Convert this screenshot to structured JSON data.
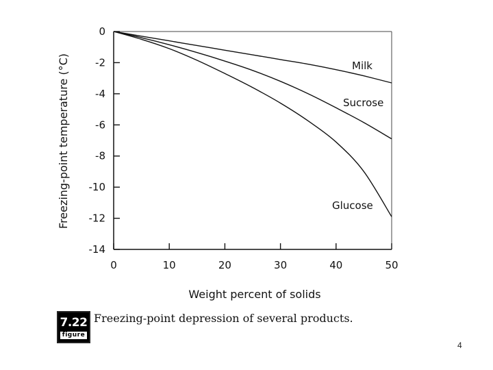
{
  "chart_data": {
    "type": "line",
    "xlabel": "Weight percent of solids",
    "ylabel": "Freezing-point temperature (°C)",
    "xlim": [
      0,
      50
    ],
    "ylim": [
      -14,
      0
    ],
    "xticks": [
      0,
      10,
      20,
      30,
      40,
      50
    ],
    "yticks": [
      0,
      -2,
      -4,
      -6,
      -8,
      -10,
      -12,
      -14
    ],
    "grid": false,
    "series": [
      {
        "name": "Milk",
        "x": [
          0,
          5,
          10,
          15,
          20,
          25,
          30,
          35,
          40,
          45,
          50
        ],
        "y": [
          0,
          -0.3,
          -0.6,
          -0.9,
          -1.2,
          -1.5,
          -1.8,
          -2.1,
          -2.45,
          -2.85,
          -3.3
        ]
      },
      {
        "name": "Sucrose",
        "x": [
          0,
          5,
          10,
          15,
          20,
          25,
          30,
          35,
          40,
          45,
          50
        ],
        "y": [
          0,
          -0.4,
          -0.85,
          -1.35,
          -1.9,
          -2.5,
          -3.2,
          -4.0,
          -4.9,
          -5.85,
          -6.9
        ]
      },
      {
        "name": "Glucose",
        "x": [
          0,
          5,
          10,
          15,
          20,
          25,
          30,
          35,
          40,
          45,
          50
        ],
        "y": [
          0,
          -0.5,
          -1.1,
          -1.85,
          -2.7,
          -3.6,
          -4.6,
          -5.75,
          -7.1,
          -9.0,
          -11.9
        ]
      }
    ]
  },
  "figure": {
    "number": "7.22",
    "word": "figure",
    "caption": "Freezing-point depression of several products."
  },
  "page_number": "4"
}
